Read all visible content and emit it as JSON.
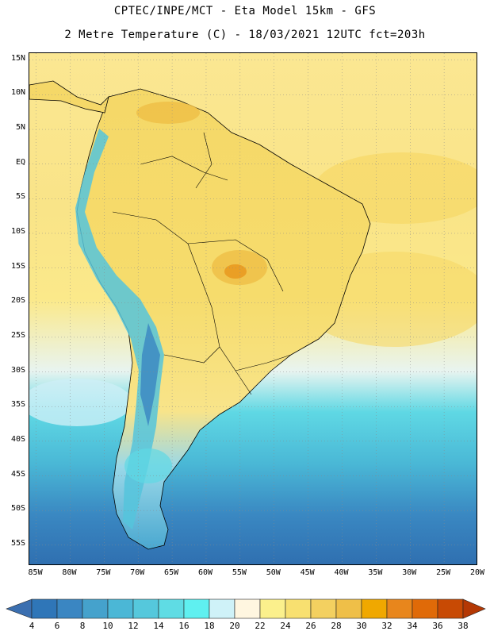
{
  "title": {
    "line1": "CPTEC/INPE/MCT -  Eta Model 15km - GFS",
    "line2": "2 Metre Temperature (C) - 18/03/2021 12UTC fct=203h"
  },
  "map": {
    "lon_range": [
      -86,
      -20
    ],
    "lat_range": [
      -58,
      16
    ],
    "lat_ticks": [
      "15N",
      "10N",
      "5N",
      "EQ",
      "5S",
      "10S",
      "15S",
      "20S",
      "25S",
      "30S",
      "35S",
      "40S",
      "45S",
      "50S",
      "55S"
    ],
    "lon_ticks": [
      "85W",
      "80W",
      "75W",
      "70W",
      "65W",
      "60W",
      "55W",
      "50W",
      "45W",
      "40W",
      "35W",
      "30W",
      "25W",
      "20W"
    ]
  },
  "colorbar": {
    "labels": [
      "4",
      "6",
      "8",
      "10",
      "12",
      "14",
      "16",
      "18",
      "20",
      "22",
      "24",
      "26",
      "28",
      "30",
      "32",
      "34",
      "36",
      "38"
    ],
    "colors": [
      "#3b6fb0",
      "#2f76b8",
      "#3a86c2",
      "#45a2cc",
      "#4bb7d6",
      "#55c8dc",
      "#5fdce4",
      "#5ff0f0",
      "#cff2f8",
      "#fff6e0",
      "#fbf08c",
      "#f8e070",
      "#f3d060",
      "#efbf48",
      "#f0a800",
      "#e8861c",
      "#e06a08",
      "#c84a04",
      "#b43804"
    ]
  }
}
